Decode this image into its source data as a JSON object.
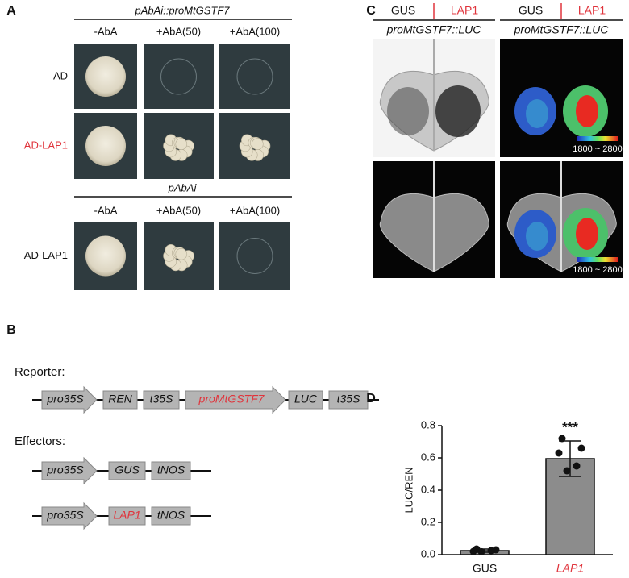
{
  "panel_a": {
    "label": "A",
    "groups": [
      {
        "title": "pAbAi::proMtGSTF7",
        "columns": [
          "-AbA",
          "+AbA(50)",
          "+AbA(100)"
        ],
        "rows": [
          "AD",
          "AD-LAP1"
        ]
      },
      {
        "title": "pAbAi",
        "columns": [
          "-AbA",
          "+AbA(50)",
          "+AbA(100)"
        ],
        "rows": [
          "AD-LAP1"
        ]
      }
    ]
  },
  "panel_b": {
    "label": "B",
    "reporter": {
      "title": "Reporter:",
      "elements": [
        "pro35S",
        "REN",
        "t35S",
        "proMtGSTF7",
        "LUC",
        "t35S"
      ]
    },
    "effectors": {
      "title": "Effectors:",
      "constructs": [
        [
          "pro35S",
          "GUS",
          "tNOS"
        ],
        [
          "pro35S",
          "LAP1",
          "tNOS"
        ]
      ]
    }
  },
  "panel_c": {
    "label": "C",
    "columns": [
      {
        "conditions": [
          "GUS",
          "LAP1"
        ],
        "construct": "proMtGSTF7::LUC"
      },
      {
        "conditions": [
          "GUS",
          "LAP1"
        ],
        "construct": "proMtGSTF7::LUC"
      }
    ],
    "scale_labels": [
      "1800 ~ 2800",
      "1800 ~ 2800"
    ]
  },
  "panel_d": {
    "label": "D"
  },
  "chart_data": {
    "type": "bar",
    "ylabel": "LUC/REN",
    "categories": [
      "GUS",
      "LAP1"
    ],
    "category_label_colors": [
      "#111111",
      "#e0343c"
    ],
    "values": [
      0.025,
      0.595
    ],
    "errors": [
      0.01,
      0.11
    ],
    "points": [
      [
        0.035,
        0.03,
        0.02,
        0.025,
        0.018
      ],
      [
        0.72,
        0.66,
        0.63,
        0.55,
        0.52
      ]
    ],
    "significance": [
      null,
      "***"
    ],
    "color": "#8c8c8c",
    "ylim": [
      0,
      0.8
    ],
    "yticks": [
      {
        "value": 0,
        "label": "0.0"
      },
      0.2,
      0.4,
      0.6,
      0.8
    ]
  }
}
